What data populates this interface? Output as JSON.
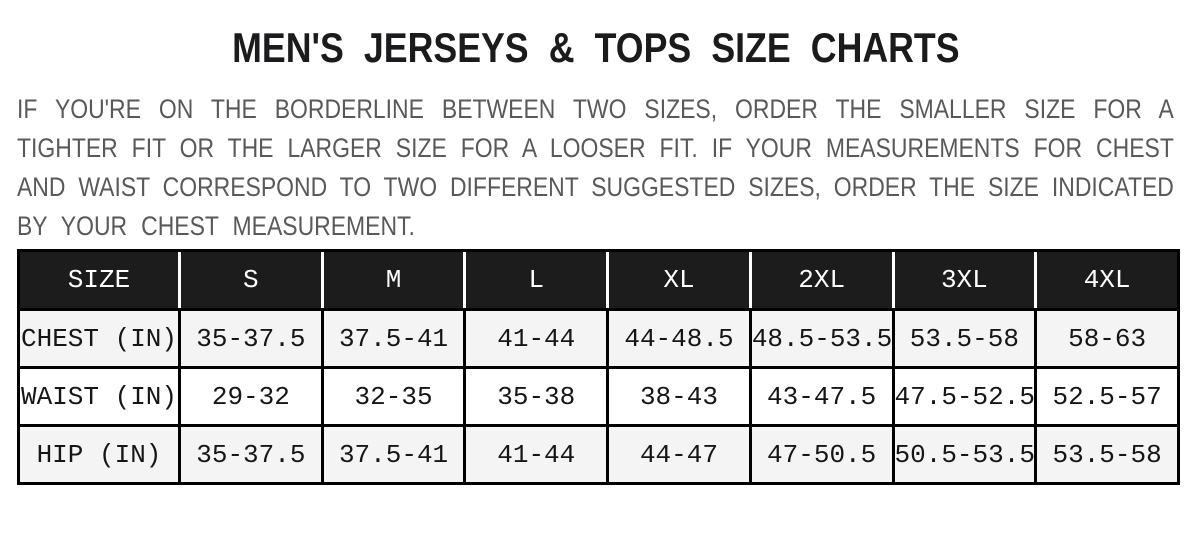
{
  "page": {
    "title": "MEN'S JERSEYS & TOPS SIZE CHARTS"
  },
  "intro": {
    "lines": [
      "IF YOU'RE ON THE BORDERLINE BETWEEN TWO SIZES, ORDER THE SMALLER SIZE FOR A",
      "TIGHTER FIT OR THE LARGER SIZE FOR A LOOSER FIT. IF YOUR MEASUREMENTS FOR CHEST",
      "AND WAIST CORRESPOND TO TWO DIFFERENT SUGGESTED SIZES, ORDER THE SIZE INDICATED",
      "BY YOUR CHEST MEASUREMENT."
    ]
  },
  "size_chart": {
    "columns": [
      "SIZE",
      "S",
      "M",
      "L",
      "XL",
      "2XL",
      "3XL",
      "4XL"
    ],
    "rows": [
      {
        "label": "CHEST (IN)",
        "values": [
          "35-37.5",
          "37.5-41",
          "41-44",
          "44-48.5",
          "48.5-53.5",
          "53.5-58",
          "58-63"
        ]
      },
      {
        "label": "WAIST (IN)",
        "values": [
          "29-32",
          "32-35",
          "35-38",
          "38-43",
          "43-47.5",
          "47.5-52.5",
          "52.5-57"
        ]
      },
      {
        "label": "HIP (IN)",
        "values": [
          "35-37.5",
          "37.5-41",
          "41-44",
          "44-47",
          "47-50.5",
          "50.5-53.5",
          "53.5-58"
        ]
      }
    ]
  },
  "colors": {
    "title_text": "#1b1b1d",
    "intro_text": "#58595b",
    "header_bg": "#1c1c1d",
    "row_alt_bg": "#f4f4f5",
    "border": "#000000"
  }
}
